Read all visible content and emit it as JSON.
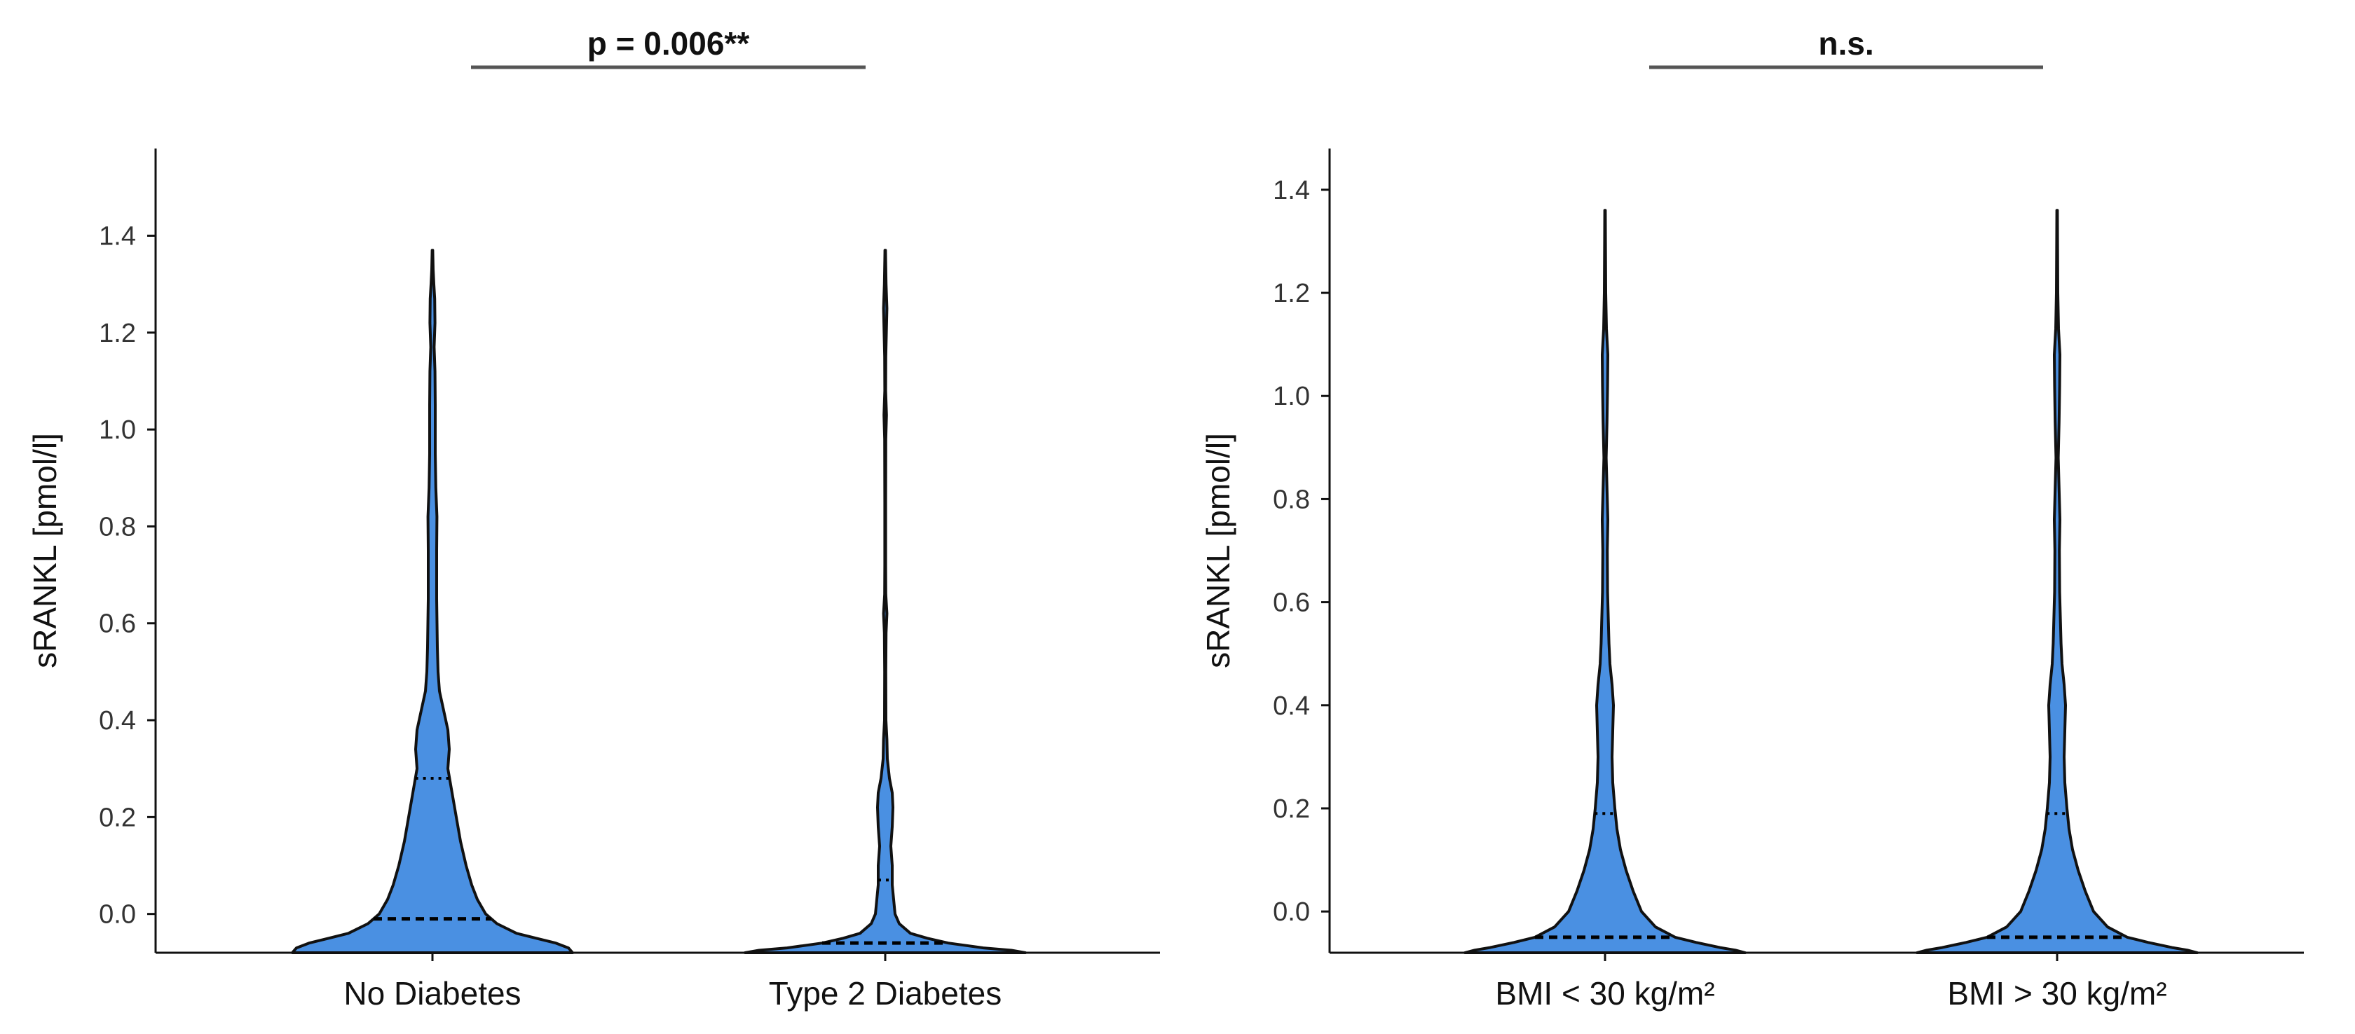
{
  "colors": {
    "violin_fill": "#4a90e2",
    "violin_stroke": "#111111",
    "axis": "#111111",
    "bracket": "#555555"
  },
  "chart_data": [
    {
      "type": "violin",
      "ylabel": "sRANKL [pmol/l]",
      "xlabel": "",
      "ylim": [
        -0.08,
        1.58
      ],
      "yticks": [
        0.0,
        0.2,
        0.4,
        0.6,
        0.8,
        1.0,
        1.2,
        1.4
      ],
      "ytick_labels": [
        "0.0",
        "0.2",
        "0.4",
        "0.6",
        "0.8",
        "1.0",
        "1.2",
        "1.4"
      ],
      "categories": [
        "No Diabetes",
        "Type 2 Diabetes"
      ],
      "significance": {
        "label": "p = 0.006**",
        "between": [
          "No Diabetes",
          "Type 2 Diabetes"
        ]
      },
      "groups": [
        {
          "name": "No Diabetes",
          "max": 1.37,
          "median": -0.01,
          "quartile": 0.28,
          "density": [
            [
              -0.08,
              1.0
            ],
            [
              -0.07,
              0.97
            ],
            [
              -0.06,
              0.88
            ],
            [
              -0.05,
              0.74
            ],
            [
              -0.04,
              0.6
            ],
            [
              -0.02,
              0.46
            ],
            [
              0.0,
              0.38
            ],
            [
              0.03,
              0.32
            ],
            [
              0.06,
              0.28
            ],
            [
              0.1,
              0.24
            ],
            [
              0.15,
              0.2
            ],
            [
              0.2,
              0.17
            ],
            [
              0.25,
              0.14
            ],
            [
              0.3,
              0.11
            ],
            [
              0.34,
              0.12
            ],
            [
              0.38,
              0.11
            ],
            [
              0.42,
              0.08
            ],
            [
              0.46,
              0.05
            ],
            [
              0.5,
              0.04
            ],
            [
              0.55,
              0.035
            ],
            [
              0.65,
              0.03
            ],
            [
              0.75,
              0.03
            ],
            [
              0.82,
              0.032
            ],
            [
              0.88,
              0.024
            ],
            [
              0.95,
              0.02
            ],
            [
              1.05,
              0.02
            ],
            [
              1.12,
              0.018
            ],
            [
              1.17,
              0.012
            ],
            [
              1.22,
              0.018
            ],
            [
              1.27,
              0.016
            ],
            [
              1.3,
              0.01
            ],
            [
              1.33,
              0.005
            ],
            [
              1.37,
              0.002
            ]
          ]
        },
        {
          "name": "Type 2 Diabetes",
          "max": 1.37,
          "median": -0.06,
          "quartile": 0.07,
          "density": [
            [
              -0.08,
              1.0
            ],
            [
              -0.075,
              0.9
            ],
            [
              -0.07,
              0.7
            ],
            [
              -0.06,
              0.45
            ],
            [
              -0.05,
              0.3
            ],
            [
              -0.04,
              0.18
            ],
            [
              -0.02,
              0.1
            ],
            [
              0.0,
              0.07
            ],
            [
              0.03,
              0.06
            ],
            [
              0.06,
              0.05
            ],
            [
              0.1,
              0.05
            ],
            [
              0.14,
              0.04
            ],
            [
              0.18,
              0.05
            ],
            [
              0.22,
              0.055
            ],
            [
              0.25,
              0.05
            ],
            [
              0.28,
              0.03
            ],
            [
              0.32,
              0.015
            ],
            [
              0.36,
              0.012
            ],
            [
              0.4,
              0.005
            ],
            [
              0.5,
              0.004
            ],
            [
              0.58,
              0.006
            ],
            [
              0.62,
              0.012
            ],
            [
              0.66,
              0.004
            ],
            [
              0.72,
              0.003
            ],
            [
              0.85,
              0.003
            ],
            [
              0.98,
              0.004
            ],
            [
              1.03,
              0.009
            ],
            [
              1.08,
              0.003
            ],
            [
              1.15,
              0.004
            ],
            [
              1.2,
              0.008
            ],
            [
              1.25,
              0.012
            ],
            [
              1.3,
              0.006
            ],
            [
              1.35,
              0.003
            ],
            [
              1.37,
              0.002
            ]
          ]
        }
      ]
    },
    {
      "type": "violin",
      "ylabel": "sRANKL [pmol/l]",
      "xlabel": "",
      "ylim": [
        -0.08,
        1.48
      ],
      "yticks": [
        0.0,
        0.2,
        0.4,
        0.6,
        0.8,
        1.0,
        1.2,
        1.4
      ],
      "ytick_labels": [
        "0.0",
        "0.2",
        "0.4",
        "0.6",
        "0.8",
        "1.0",
        "1.2",
        "1.4"
      ],
      "categories": [
        "BMI < 30 kg/m²",
        "BMI > 30 kg/m²"
      ],
      "significance": {
        "label": "n.s.",
        "between": [
          "BMI < 30 kg/m²",
          "BMI > 30 kg/m²"
        ]
      },
      "groups": [
        {
          "name": "BMI < 30 kg/m²",
          "max": 1.36,
          "median": -0.05,
          "quartile": 0.19,
          "density": [
            [
              -0.08,
              1.0
            ],
            [
              -0.075,
              0.93
            ],
            [
              -0.07,
              0.82
            ],
            [
              -0.06,
              0.65
            ],
            [
              -0.05,
              0.5
            ],
            [
              -0.03,
              0.36
            ],
            [
              0.0,
              0.26
            ],
            [
              0.04,
              0.2
            ],
            [
              0.08,
              0.15
            ],
            [
              0.12,
              0.11
            ],
            [
              0.16,
              0.085
            ],
            [
              0.2,
              0.07
            ],
            [
              0.25,
              0.055
            ],
            [
              0.3,
              0.05
            ],
            [
              0.35,
              0.055
            ],
            [
              0.4,
              0.06
            ],
            [
              0.44,
              0.05
            ],
            [
              0.48,
              0.035
            ],
            [
              0.52,
              0.028
            ],
            [
              0.56,
              0.024
            ],
            [
              0.62,
              0.018
            ],
            [
              0.7,
              0.016
            ],
            [
              0.76,
              0.02
            ],
            [
              0.8,
              0.016
            ],
            [
              0.88,
              0.008
            ],
            [
              0.95,
              0.014
            ],
            [
              1.02,
              0.018
            ],
            [
              1.08,
              0.02
            ],
            [
              1.13,
              0.01
            ],
            [
              1.2,
              0.005
            ],
            [
              1.3,
              0.003
            ],
            [
              1.36,
              0.002
            ]
          ]
        },
        {
          "name": "BMI > 30 kg/m²",
          "max": 1.36,
          "median": -0.05,
          "quartile": 0.19,
          "density": [
            [
              -0.08,
              1.0
            ],
            [
              -0.075,
              0.93
            ],
            [
              -0.07,
              0.82
            ],
            [
              -0.06,
              0.65
            ],
            [
              -0.05,
              0.5
            ],
            [
              -0.03,
              0.36
            ],
            [
              0.0,
              0.26
            ],
            [
              0.04,
              0.2
            ],
            [
              0.08,
              0.15
            ],
            [
              0.12,
              0.11
            ],
            [
              0.16,
              0.085
            ],
            [
              0.2,
              0.07
            ],
            [
              0.25,
              0.055
            ],
            [
              0.3,
              0.05
            ],
            [
              0.35,
              0.055
            ],
            [
              0.4,
              0.06
            ],
            [
              0.44,
              0.05
            ],
            [
              0.48,
              0.035
            ],
            [
              0.52,
              0.028
            ],
            [
              0.56,
              0.024
            ],
            [
              0.62,
              0.018
            ],
            [
              0.7,
              0.016
            ],
            [
              0.76,
              0.02
            ],
            [
              0.8,
              0.016
            ],
            [
              0.88,
              0.008
            ],
            [
              0.95,
              0.014
            ],
            [
              1.02,
              0.018
            ],
            [
              1.08,
              0.02
            ],
            [
              1.13,
              0.01
            ],
            [
              1.2,
              0.005
            ],
            [
              1.3,
              0.003
            ],
            [
              1.36,
              0.002
            ]
          ]
        }
      ]
    }
  ]
}
